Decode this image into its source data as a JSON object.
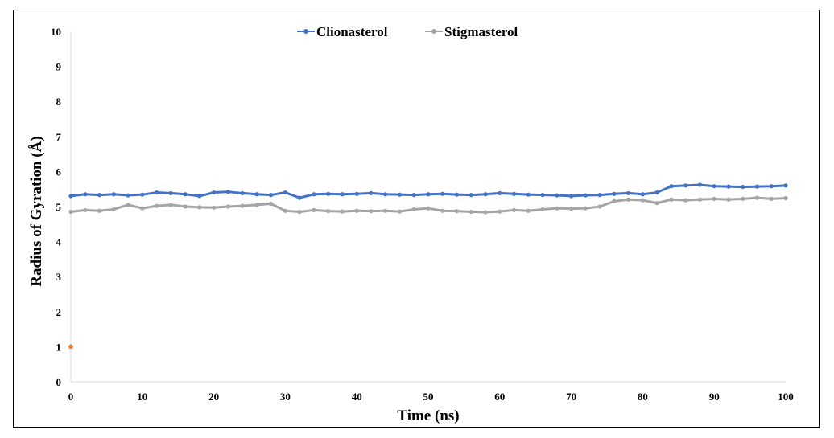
{
  "chart_data": {
    "type": "scatter",
    "xlabel": "Time (ns)",
    "ylabel": "Radius of Gyration (Å)",
    "xlim": [
      0,
      100
    ],
    "ylim": [
      0,
      10
    ],
    "x_ticks": [
      "0",
      "10",
      "20",
      "30",
      "40",
      "50",
      "60",
      "70",
      "80",
      "90",
      "100"
    ],
    "y_ticks": [
      "0",
      "1",
      "2",
      "3",
      "4",
      "5",
      "6",
      "7",
      "8",
      "9",
      "10"
    ],
    "grid": false,
    "legend_position": "top-center",
    "series": [
      {
        "name": "Clionasterol",
        "color": "#4472C4",
        "x": [
          0,
          2,
          4,
          6,
          8,
          10,
          12,
          14,
          16,
          18,
          20,
          22,
          24,
          26,
          28,
          30,
          32,
          34,
          36,
          38,
          40,
          42,
          44,
          46,
          48,
          50,
          52,
          54,
          56,
          58,
          60,
          62,
          64,
          66,
          68,
          70,
          72,
          74,
          76,
          78,
          80,
          82,
          84,
          86,
          88,
          90,
          92,
          94,
          96,
          98,
          100
        ],
        "y": [
          5.3,
          5.35,
          5.33,
          5.35,
          5.32,
          5.34,
          5.4,
          5.38,
          5.35,
          5.3,
          5.4,
          5.42,
          5.38,
          5.35,
          5.33,
          5.4,
          5.25,
          5.35,
          5.36,
          5.35,
          5.36,
          5.38,
          5.35,
          5.34,
          5.33,
          5.35,
          5.36,
          5.34,
          5.33,
          5.35,
          5.38,
          5.36,
          5.34,
          5.33,
          5.32,
          5.3,
          5.32,
          5.33,
          5.36,
          5.38,
          5.35,
          5.4,
          5.58,
          5.6,
          5.62,
          5.58,
          5.57,
          5.56,
          5.57,
          5.58,
          5.6
        ]
      },
      {
        "name": "Stigmasterol",
        "color": "#A5A5A5",
        "x": [
          0,
          2,
          4,
          6,
          8,
          10,
          12,
          14,
          16,
          18,
          20,
          22,
          24,
          26,
          28,
          30,
          32,
          34,
          36,
          38,
          40,
          42,
          44,
          46,
          48,
          50,
          52,
          54,
          56,
          58,
          60,
          62,
          64,
          66,
          68,
          70,
          72,
          74,
          76,
          78,
          80,
          82,
          84,
          86,
          88,
          90,
          92,
          94,
          96,
          98,
          100
        ],
        "y": [
          4.85,
          4.9,
          4.88,
          4.92,
          5.05,
          4.95,
          5.02,
          5.05,
          5.0,
          4.98,
          4.97,
          5.0,
          5.02,
          5.05,
          5.08,
          4.88,
          4.85,
          4.9,
          4.87,
          4.86,
          4.88,
          4.87,
          4.88,
          4.86,
          4.92,
          4.95,
          4.88,
          4.87,
          4.85,
          4.84,
          4.86,
          4.9,
          4.88,
          4.92,
          4.95,
          4.94,
          4.95,
          5.0,
          5.15,
          5.2,
          5.18,
          5.1,
          5.2,
          5.18,
          5.2,
          5.22,
          5.2,
          5.22,
          5.25,
          5.22,
          5.24
        ]
      },
      {
        "name": "",
        "color": "#ED7D31",
        "x": [
          0
        ],
        "y": [
          1
        ]
      }
    ]
  }
}
